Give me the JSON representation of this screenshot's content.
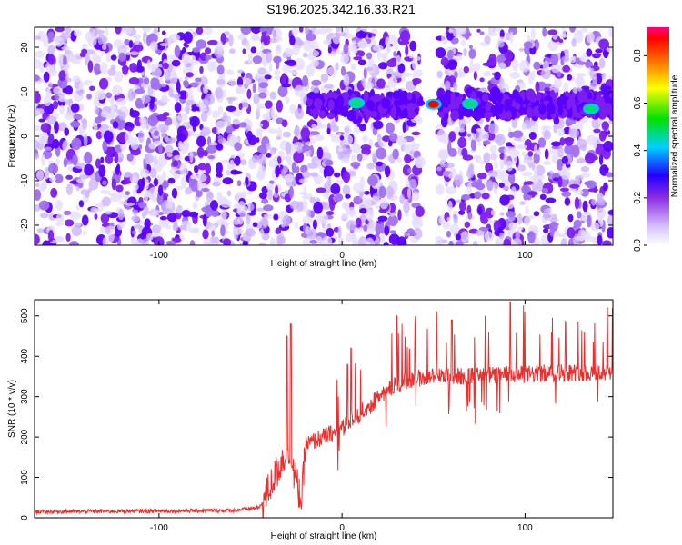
{
  "title": "S196.2025.342.16.33.R21",
  "chart_data": [
    {
      "type": "heatmap",
      "xlabel": "Height of straight line (km)",
      "ylabel": "Frequency (Hz)",
      "xlim": [
        -168,
        148
      ],
      "ylim": [
        -24.5,
        24.5
      ],
      "x_ticks": [
        -100,
        0,
        100
      ],
      "y_ticks": [
        -20,
        -10,
        0,
        10,
        20
      ],
      "gap_x_range": [
        43,
        53
      ],
      "band": {
        "frequency_center": 7,
        "frequency_half_width": 3,
        "x_start": -20,
        "x_end": 148
      },
      "hot_spots": [
        {
          "x": 8,
          "frequency": 7.5,
          "value": 0.45
        },
        {
          "x": 50,
          "frequency": 7.2,
          "value": 0.8
        },
        {
          "x": 70,
          "frequency": 7.3,
          "value": 0.5
        },
        {
          "x": 136,
          "frequency": 6.2,
          "value": 0.45
        }
      ],
      "colorbar": {
        "label": "Normalized spectral amplitude",
        "range": [
          0,
          0.92
        ],
        "ticks": [
          0.0,
          0.2,
          0.4,
          0.6,
          0.8
        ],
        "tick_labels": [
          "0.0",
          "0.2",
          "0.4",
          "0.6",
          "0.8"
        ]
      }
    },
    {
      "type": "line",
      "xlabel": "Height of straight line (km)",
      "ylabel": "SNR (10 * v/v)",
      "xlim": [
        -168,
        148
      ],
      "ylim": [
        0,
        540
      ],
      "x_ticks": [
        -100,
        0,
        100
      ],
      "y_ticks": [
        0,
        100,
        200,
        300,
        400,
        500
      ],
      "color": "#e8312e",
      "grid": false,
      "profile_x": [
        -168,
        -60,
        -45,
        -40,
        -35,
        -30,
        -25,
        -22,
        -20,
        -15,
        -10,
        -5,
        0,
        5,
        10,
        15,
        20,
        25,
        30,
        40,
        50,
        60,
        80,
        100,
        120,
        140,
        148
      ],
      "profile_y": [
        15,
        18,
        25,
        70,
        120,
        170,
        90,
        40,
        180,
        190,
        200,
        210,
        220,
        240,
        260,
        275,
        300,
        320,
        330,
        345,
        350,
        350,
        352,
        355,
        360,
        360,
        358
      ],
      "spikes": [
        {
          "x": -30,
          "y": 450
        },
        {
          "x": -28,
          "y": 480
        },
        {
          "x": 3,
          "y": 380
        },
        {
          "x": 5,
          "y": 420
        },
        {
          "x": 30,
          "y": 500
        },
        {
          "x": 60,
          "y": 490
        },
        {
          "x": 92,
          "y": 535
        },
        {
          "x": 145,
          "y": 520
        }
      ]
    }
  ]
}
